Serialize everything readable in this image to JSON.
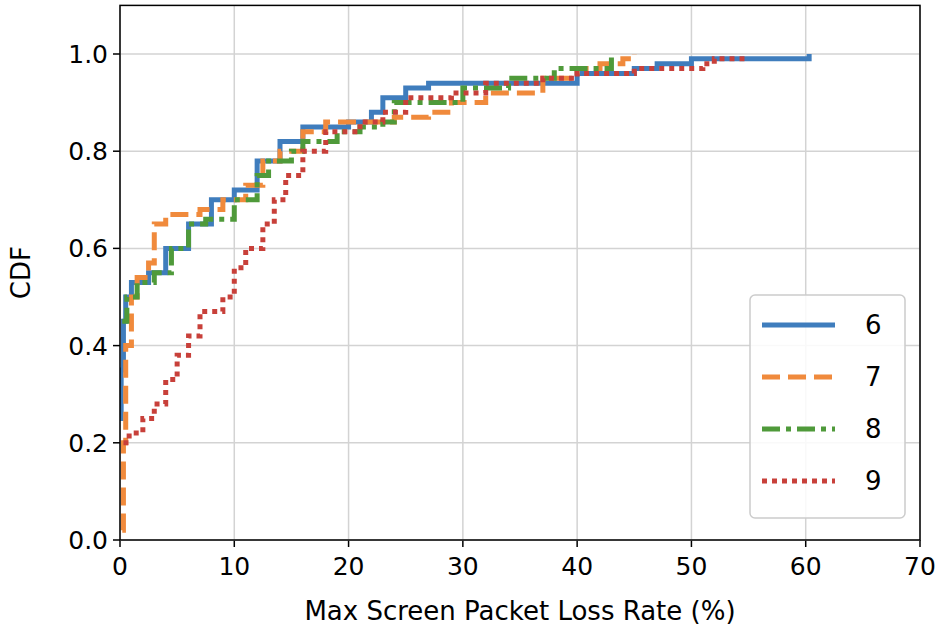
{
  "chart_data": {
    "type": "line",
    "x_label": "Max Screen Packet Loss Rate (%)",
    "y_label": "CDF",
    "xlim": [
      0,
      70
    ],
    "ylim": [
      0,
      1.1
    ],
    "xticks": [
      0,
      10,
      20,
      30,
      40,
      50,
      60,
      70
    ],
    "yticks": [
      {
        "value": 0,
        "label": "0.0"
      },
      {
        "value": 0.2,
        "label": "0.2"
      },
      {
        "value": 0.4,
        "label": "0.4"
      },
      {
        "value": 0.6,
        "label": "0.6"
      },
      {
        "value": 0.8,
        "label": "0.8"
      },
      {
        "value": 1.0,
        "label": "1.0"
      }
    ],
    "grid": true,
    "legend": "lower right",
    "series": [
      {
        "name": "6",
        "color": "#3f7dbd",
        "line_style": "solid",
        "x": [
          0,
          0.1,
          0.3,
          0.5,
          1,
          2.5,
          4,
          6,
          8,
          10,
          12,
          14,
          16,
          20,
          22,
          23,
          25,
          27,
          35,
          40,
          45,
          47,
          50,
          60,
          60.3
        ],
        "values": [
          0.25,
          0.35,
          0.45,
          0.5,
          0.53,
          0.55,
          0.6,
          0.65,
          0.7,
          0.72,
          0.78,
          0.82,
          0.85,
          0.86,
          0.88,
          0.91,
          0.93,
          0.94,
          0.94,
          0.96,
          0.97,
          0.98,
          0.99,
          0.99,
          1.0
        ]
      },
      {
        "name": "7",
        "color": "#f08a3c",
        "line_style": "dashed",
        "x": [
          0.2,
          0.3,
          0.5,
          1,
          1.5,
          2.5,
          3,
          4,
          7,
          9,
          11,
          12.5,
          14,
          16,
          18,
          22,
          24,
          27,
          29,
          32,
          37,
          40,
          42,
          44,
          45
        ],
        "values": [
          0.02,
          0.2,
          0.4,
          0.5,
          0.54,
          0.57,
          0.65,
          0.67,
          0.68,
          0.7,
          0.73,
          0.78,
          0.8,
          0.84,
          0.86,
          0.86,
          0.87,
          0.88,
          0.9,
          0.92,
          0.95,
          0.97,
          0.98,
          0.99,
          1.0
        ]
      },
      {
        "name": "8",
        "color": "#4f9a3a",
        "line_style": "dashdot",
        "x": [
          0.2,
          0.6,
          1.5,
          3,
          4.5,
          6,
          7.5,
          9.5,
          10,
          12,
          13,
          15,
          16,
          19,
          21,
          23,
          24,
          27,
          30,
          34,
          38,
          41,
          43
        ],
        "values": [
          0.45,
          0.5,
          0.53,
          0.55,
          0.6,
          0.65,
          0.66,
          0.66,
          0.7,
          0.75,
          0.78,
          0.8,
          0.82,
          0.84,
          0.85,
          0.86,
          0.9,
          0.9,
          0.93,
          0.95,
          0.97,
          0.97,
          1.0
        ]
      },
      {
        "name": "9",
        "color": "#c8403a",
        "line_style": "dotted",
        "x": [
          0.3,
          0.8,
          2,
          3,
          4,
          5,
          6,
          7,
          9,
          10,
          11,
          12.5,
          13.5,
          14.5,
          16,
          18,
          21,
          23,
          25,
          29,
          32,
          37,
          40,
          45,
          51,
          52,
          55
        ],
        "values": [
          0.2,
          0.22,
          0.25,
          0.28,
          0.33,
          0.38,
          0.42,
          0.47,
          0.5,
          0.56,
          0.6,
          0.65,
          0.7,
          0.75,
          0.8,
          0.84,
          0.86,
          0.88,
          0.91,
          0.92,
          0.94,
          0.95,
          0.96,
          0.97,
          0.98,
          0.99,
          0.99
        ]
      }
    ]
  }
}
